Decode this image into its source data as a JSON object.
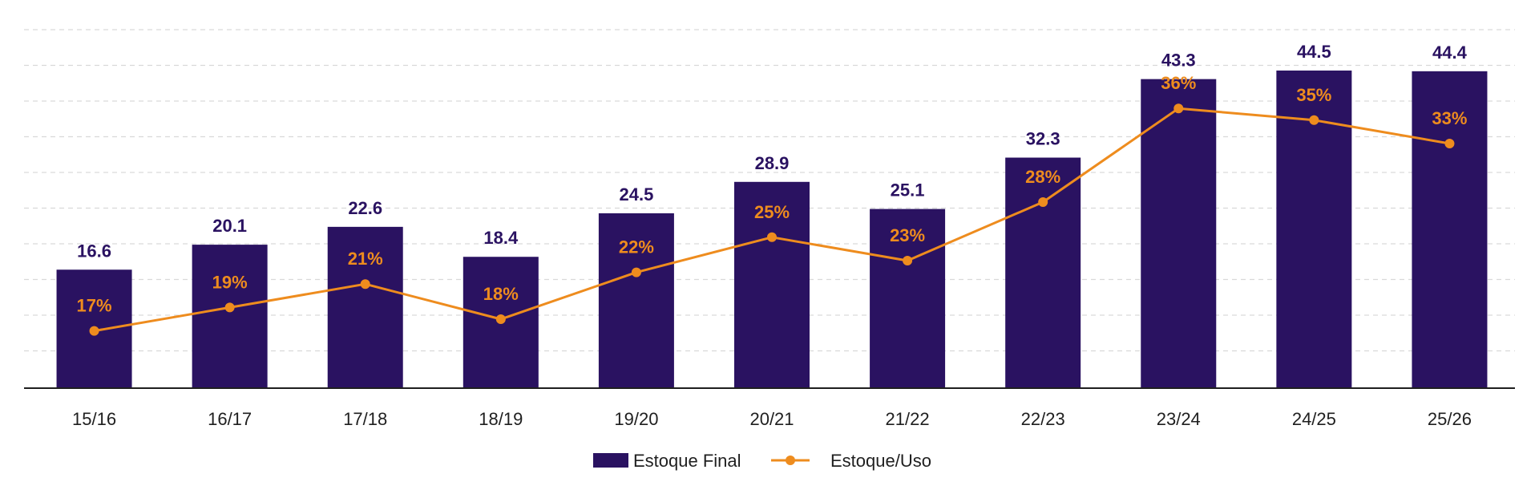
{
  "chart_data": {
    "type": "bar",
    "categories": [
      "15/16",
      "16/17",
      "17/18",
      "18/19",
      "19/20",
      "20/21",
      "21/22",
      "22/23",
      "23/24",
      "24/25",
      "25/26"
    ],
    "series": [
      {
        "name": "Estoque Final",
        "type": "bar",
        "values": [
          16.6,
          20.1,
          22.6,
          18.4,
          24.5,
          28.9,
          25.1,
          32.3,
          43.3,
          44.5,
          44.4
        ],
        "labels": [
          "16.6",
          "20.1",
          "22.6",
          "18.4",
          "24.5",
          "28.9",
          "25.1",
          "32.3",
          "43.3",
          "44.5",
          "44.4"
        ]
      },
      {
        "name": "Estoque/Uso",
        "type": "line",
        "values": [
          17,
          19,
          21,
          18,
          22,
          25,
          23,
          28,
          36,
          35,
          33
        ],
        "labels": [
          "17%",
          "19%",
          "21%",
          "18%",
          "22%",
          "25%",
          "23%",
          "28%",
          "36%",
          "35%",
          "33%"
        ]
      }
    ],
    "ylim": [
      0,
      50
    ],
    "grid": true,
    "legend_position": "bottom-center",
    "colors": {
      "bar": "#2a1261",
      "line": "#ee8c1e",
      "grid": "#d9d9d9",
      "axis": "#1f1f1f"
    }
  }
}
